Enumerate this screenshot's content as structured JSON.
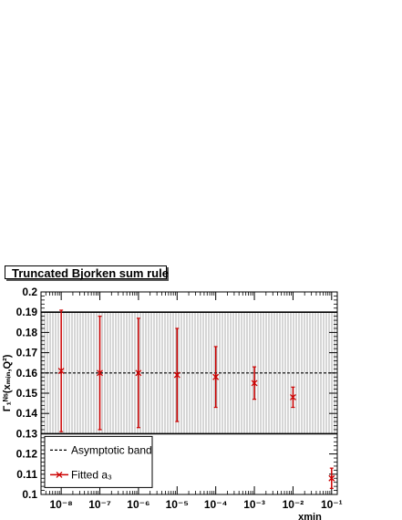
{
  "chart_data": {
    "type": "scatter",
    "title": "Truncated Bjorken sum rule",
    "xlabel": "x_min",
    "ylabel": "Γ_1^NS(x_min,Q²)",
    "x_scale": "log",
    "xlim": [
      3e-09,
      0.14
    ],
    "ylim": [
      0.1,
      0.2
    ],
    "x_ticks": [
      1e-08,
      1e-07,
      1e-06,
      1e-05,
      0.0001,
      0.001,
      0.01,
      0.1
    ],
    "x_tick_labels": [
      "10⁻⁸",
      "10⁻⁷",
      "10⁻⁶",
      "10⁻⁵",
      "10⁻⁴",
      "10⁻³",
      "10⁻²",
      "10⁻¹"
    ],
    "y_ticks": [
      0.1,
      0.11,
      0.12,
      0.13,
      0.14,
      0.15,
      0.16,
      0.17,
      0.18,
      0.19,
      0.2
    ],
    "y_tick_labels": [
      "0.1",
      "0.11",
      "0.12",
      "0.13",
      "0.14",
      "0.15",
      "0.16",
      "0.17",
      "0.18",
      "0.19",
      "0.2"
    ],
    "band": {
      "name": "Asymptotic band",
      "central": 0.16,
      "low": 0.13,
      "high": 0.19
    },
    "series": [
      {
        "name": "Fitted a_3",
        "color": "#cc0000",
        "x": [
          1e-08,
          1e-07,
          1e-06,
          1e-05,
          0.0001,
          0.001,
          0.01,
          0.1
        ],
        "y": [
          0.161,
          0.16,
          0.16,
          0.159,
          0.158,
          0.155,
          0.148,
          0.108
        ],
        "y_low": [
          0.131,
          0.132,
          0.133,
          0.136,
          0.143,
          0.147,
          0.143,
          0.103
        ],
        "y_high": [
          0.191,
          0.188,
          0.187,
          0.182,
          0.173,
          0.163,
          0.153,
          0.113
        ]
      }
    ],
    "legend": {
      "position": "bottom-left",
      "entries": [
        "Asymptotic band",
        "Fitted a_3"
      ]
    }
  }
}
